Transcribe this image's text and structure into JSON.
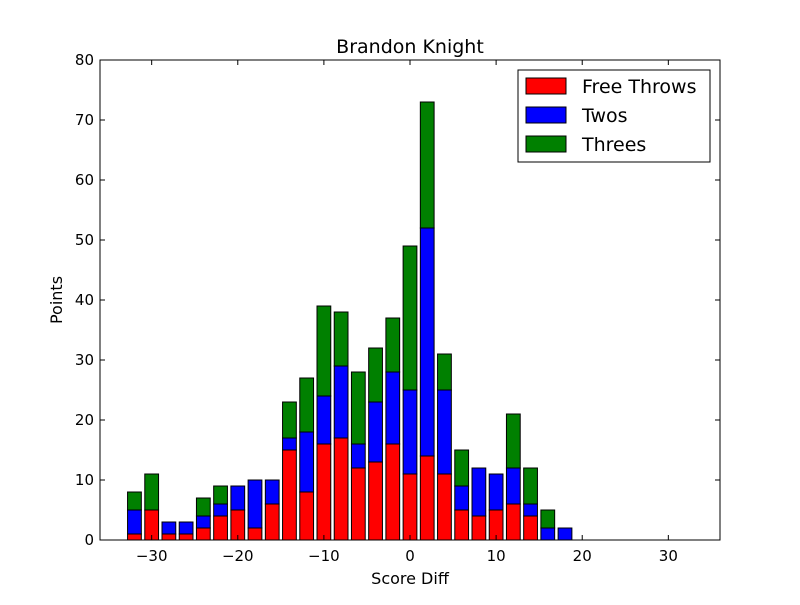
{
  "chart_data": {
    "type": "bar",
    "stacked": true,
    "title": "Brandon Knight",
    "xlabel": "Score Diff",
    "ylabel": "Points",
    "xlim": [
      -36,
      36
    ],
    "ylim": [
      0,
      80
    ],
    "xticks": [
      -30,
      -20,
      -10,
      0,
      10,
      20,
      30
    ],
    "xtick_labels": [
      "−30",
      "−20",
      "−10",
      "0",
      "10",
      "20",
      "30"
    ],
    "yticks": [
      0,
      10,
      20,
      30,
      40,
      50,
      60,
      70,
      80
    ],
    "ytick_labels": [
      "0",
      "10",
      "20",
      "30",
      "40",
      "50",
      "60",
      "70",
      "80"
    ],
    "bar_width": 1.6,
    "grid": false,
    "legend_position": "top-right",
    "x": [
      -34,
      -32,
      -30,
      -28,
      -26,
      -24,
      -22,
      -20,
      -18,
      -16,
      -14,
      -12,
      -10,
      -8,
      -6,
      -4,
      -2,
      0,
      2,
      4,
      6,
      8,
      10,
      12,
      14,
      16,
      18,
      20,
      22,
      24,
      26,
      28,
      30,
      32,
      34
    ],
    "series": [
      {
        "name": "Free Throws",
        "color": "#ff0000",
        "values": [
          0,
          1,
          5,
          1,
          1,
          2,
          4,
          5,
          2,
          6,
          15,
          8,
          16,
          17,
          12,
          13,
          16,
          11,
          14,
          11,
          5,
          4,
          5,
          6,
          4,
          0,
          0,
          0,
          0,
          0,
          0,
          0,
          0,
          0,
          0
        ]
      },
      {
        "name": "Twos",
        "color": "#0000ff",
        "values": [
          0,
          4,
          0,
          2,
          2,
          2,
          2,
          4,
          8,
          4,
          2,
          10,
          8,
          12,
          4,
          10,
          12,
          14,
          38,
          14,
          4,
          8,
          6,
          6,
          2,
          2,
          2,
          0,
          0,
          0,
          0,
          0,
          0,
          0,
          0
        ]
      },
      {
        "name": "Threes",
        "color": "#008000",
        "values": [
          0,
          3,
          6,
          0,
          0,
          3,
          3,
          0,
          0,
          0,
          6,
          9,
          15,
          9,
          12,
          9,
          9,
          24,
          21,
          6,
          6,
          0,
          0,
          9,
          6,
          3,
          0,
          0,
          0,
          0,
          0,
          0,
          0,
          0,
          0
        ]
      }
    ]
  }
}
